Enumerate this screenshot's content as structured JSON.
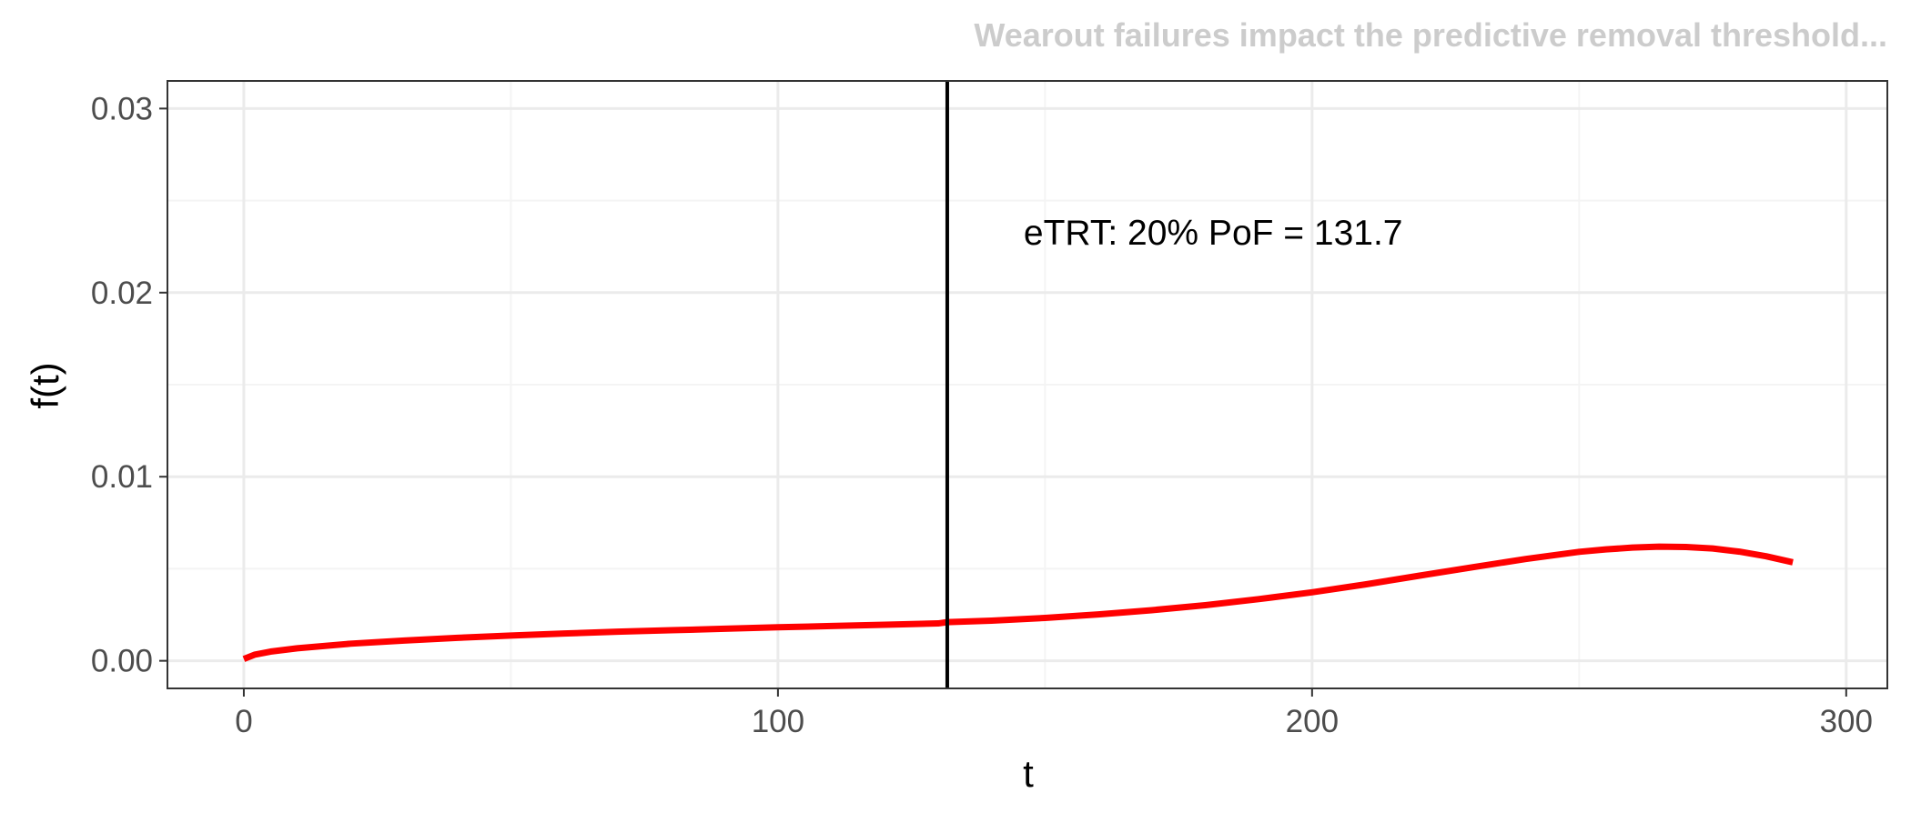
{
  "chart_data": {
    "type": "line",
    "title": "",
    "subtitle": "Wearout failures impact the predictive removal threshold...",
    "xlabel": "t",
    "ylabel": "f(t)",
    "xlim": [
      -14.3,
      307.7
    ],
    "ylim": [
      -0.0015,
      0.0315
    ],
    "x_ticks": [
      0,
      100,
      200,
      300
    ],
    "x_tick_labels": [
      "0",
      "100",
      "200",
      "300"
    ],
    "y_ticks": [
      0,
      0.01,
      0.02,
      0.03
    ],
    "y_tick_labels": [
      "0.00",
      "0.01",
      "0.02",
      "0.03"
    ],
    "x_minor_ticks": [
      50,
      150,
      250
    ],
    "y_minor_ticks": [
      0.005,
      0.015,
      0.025
    ],
    "grid": true,
    "legend": "none",
    "series": [
      {
        "color": "#ff0000",
        "x": [
          0,
          2,
          5,
          10,
          20,
          30,
          40,
          50,
          60,
          70,
          80,
          90,
          100,
          110,
          120,
          130,
          131.7,
          140,
          150,
          160,
          170,
          180,
          190,
          200,
          210,
          220,
          230,
          240,
          250,
          255,
          260,
          265,
          270,
          275,
          280,
          285,
          290
        ],
        "y": [
          0.0001,
          0.00033,
          0.0005,
          0.00068,
          0.00093,
          0.0011,
          0.00125,
          0.00137,
          0.00148,
          0.00158,
          0.00166,
          0.00174,
          0.00182,
          0.00189,
          0.00196,
          0.00203,
          0.0021,
          0.00218,
          0.00233,
          0.00252,
          0.00275,
          0.00302,
          0.00335,
          0.00372,
          0.00415,
          0.00462,
          0.00508,
          0.00553,
          0.00592,
          0.00605,
          0.00615,
          0.0062,
          0.00618,
          0.0061,
          0.00593,
          0.00568,
          0.00535
        ]
      }
    ],
    "vline": {
      "x": 131.7,
      "color": "#000000"
    },
    "annotations": [
      {
        "text": "eTRT: 20% PoF = 131.7",
        "x": 146,
        "y": 0.0226
      }
    ],
    "colors": {
      "grid_major": "#ebebeb",
      "grid_minor": "#f4f4f4",
      "panel_border": "#333333",
      "tick_text": "#4d4d4d",
      "subtitle": "#cccccc",
      "axis_title": "#000000"
    }
  }
}
